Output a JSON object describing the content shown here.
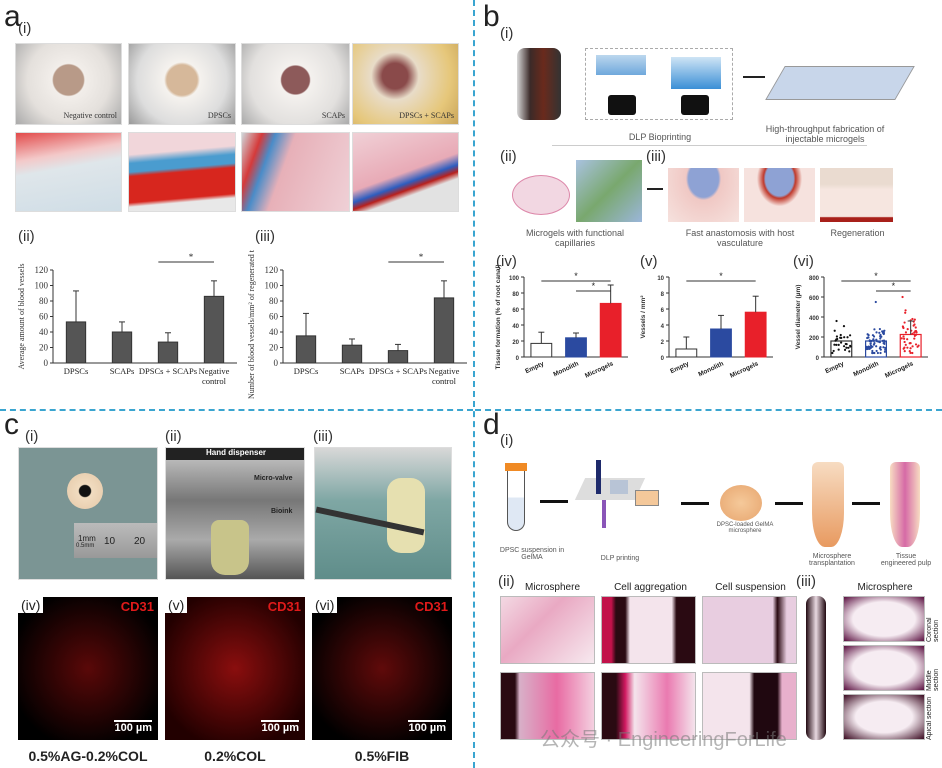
{
  "panels": {
    "a": {
      "letter": "a",
      "sub_i": "(i)",
      "sub_ii": "(ii)",
      "sub_iii": "(iii)",
      "photo_labels": [
        "Negative control",
        "DPSCs",
        "SCAPs",
        "DPSCs + SCAPs"
      ]
    },
    "b": {
      "letter": "b",
      "sub_i": "(i)",
      "sub_ii": "(ii)",
      "sub_iii": "(iii)",
      "sub_iv": "(iv)",
      "sub_v": "(v)",
      "sub_vi": "(vi)",
      "cap_dlp": "DLP Bioprinting",
      "cap_ht": "High-throughput fabrication of injectable microgels",
      "cap_microgels": "Microgels with functional capillaries",
      "cap_anast": "Fast anastomosis with host vasculature",
      "cap_regen": "Regeneration"
    },
    "c": {
      "letter": "c",
      "sub_i": "(i)",
      "sub_ii": "(ii)",
      "sub_iii": "(iii)",
      "sub_iv": "(iv)",
      "sub_v": "(v)",
      "sub_vi": "(vi)",
      "ruler_10": "10",
      "ruler_20": "20",
      "ruler_1mm": "1mm",
      "ruler_05mm": "0.5mm",
      "hand_dispenser": "Hand dispenser",
      "micro_valve": "Micro-valve",
      "bioink": "Bioink",
      "cd31": "CD31",
      "scale": "100 µm",
      "labels": [
        "0.5%AG-0.2%COL",
        "0.2%COL",
        "0.5%FIB"
      ]
    },
    "d": {
      "letter": "d",
      "sub_i": "(i)",
      "sub_ii": "(ii)",
      "sub_iii": "(iii)",
      "cap_dpsc": "DPSC suspension in GelMA",
      "cap_dlp": "DLP printing",
      "cap_loaded": "DPSC-loaded GelMA microsphere",
      "cap_transplant": "Microsphere transplantation",
      "cap_tissue": "Tissue engineered pulp",
      "hist_titles": [
        "Microsphere",
        "Cell aggregation",
        "Cell suspension"
      ],
      "iii_title": "Microsphere",
      "sections": [
        "Coronal section",
        "Middle section",
        "Apical section"
      ],
      "watermark": "公众号 · EngineeringForLife"
    }
  },
  "colors": {
    "divider": "#3aa5d0",
    "bar_gray": "#555555",
    "blue": "#2b4aa0",
    "red": "#e8202a"
  },
  "chart_data": [
    {
      "id": "a_ii",
      "type": "bar",
      "ylabel": "Average amount of blood vessels",
      "categories": [
        "DPSCs",
        "SCAPs",
        "DPSCs + SCAPs",
        "Negative control"
      ],
      "values": [
        53,
        40,
        27,
        86
      ],
      "errors": [
        40,
        13,
        12,
        20
      ],
      "ylim": [
        0,
        120
      ],
      "yticks": [
        0,
        20,
        40,
        60,
        80,
        100,
        120
      ],
      "significance": [
        {
          "from": 2,
          "to": 3,
          "label": "*"
        }
      ]
    },
    {
      "id": "a_iii",
      "type": "bar",
      "ylabel": "Number of blood vessels/mm² of regenerated tissue",
      "categories": [
        "DPSCs",
        "SCAPs",
        "DPSCs + SCAPs",
        "Negative control"
      ],
      "values": [
        35,
        23,
        16,
        84
      ],
      "errors": [
        29,
        8,
        8,
        22
      ],
      "ylim": [
        0,
        120
      ],
      "yticks": [
        0,
        20,
        40,
        60,
        80,
        100,
        120
      ],
      "significance": [
        {
          "from": 2,
          "to": 3,
          "label": "*"
        }
      ]
    },
    {
      "id": "b_iv",
      "type": "bar",
      "ylabel": "Tissue formation (% of root canal)",
      "categories": [
        "Empty",
        "Monolith",
        "Microgels"
      ],
      "values": [
        17,
        24,
        67
      ],
      "errors": [
        14,
        6,
        23
      ],
      "ylim": [
        0,
        100
      ],
      "yticks": [
        0,
        20,
        40,
        60,
        80,
        100
      ],
      "significance": [
        {
          "from": 0,
          "to": 2,
          "label": "*"
        },
        {
          "from": 1,
          "to": 2,
          "label": "*"
        }
      ]
    },
    {
      "id": "b_v",
      "type": "bar",
      "ylabel": "Vessels / mm²",
      "categories": [
        "Empty",
        "Monolith",
        "Microgels"
      ],
      "values": [
        1,
        3.5,
        5.6
      ],
      "errors": [
        1.5,
        1.7,
        2
      ],
      "ylim": [
        0,
        10
      ],
      "yticks": [
        0,
        2,
        4,
        6,
        8,
        10
      ],
      "significance": [
        {
          "from": 0,
          "to": 2,
          "label": "*"
        }
      ]
    },
    {
      "id": "b_vi",
      "type": "bar",
      "ylabel": "Vessel diameter (µm)",
      "categories": [
        "Empty",
        "Monolith",
        "Microgels"
      ],
      "values": [
        160,
        160,
        225
      ],
      "errors": [
        0,
        0,
        135
      ],
      "ylim": [
        0,
        800
      ],
      "yticks": [
        0,
        200,
        400,
        600,
        800
      ],
      "scatter_max": [
        360,
        550,
        600
      ],
      "significance": [
        {
          "from": 0,
          "to": 2,
          "label": "*"
        },
        {
          "from": 1,
          "to": 2,
          "label": "*"
        }
      ]
    }
  ]
}
